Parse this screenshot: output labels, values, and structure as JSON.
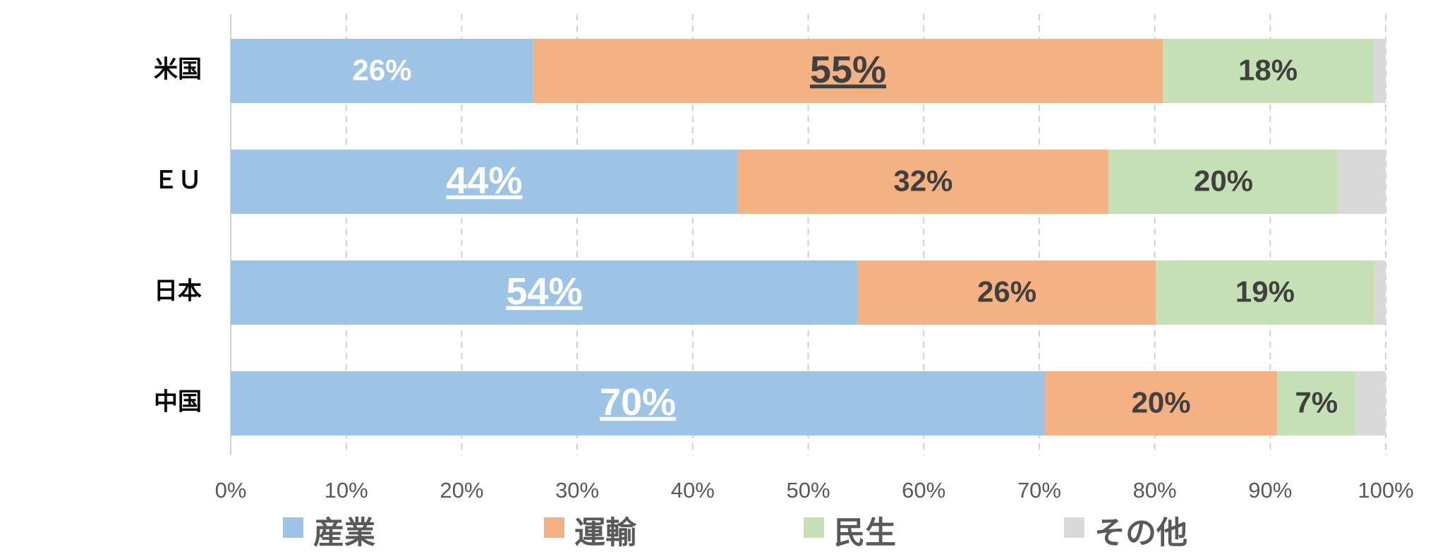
{
  "chart_data": {
    "type": "stacked-bar-horizontal",
    "categories": [
      "米国",
      "ＥＵ",
      "日本",
      "中国"
    ],
    "series": [
      {
        "name": "産業",
        "color": "#9dc3e6",
        "values": [
          26.2,
          43.9,
          54.3,
          70.5
        ],
        "value_labels": [
          "26%",
          "44%",
          "54%",
          "70%"
        ]
      },
      {
        "name": "運輸",
        "color": "#f4b183",
        "values": [
          54.5,
          32.1,
          25.8,
          20.1
        ],
        "value_labels": [
          "55%",
          "32%",
          "26%",
          "20%"
        ]
      },
      {
        "name": "民生",
        "color": "#c5e0b4",
        "values": [
          18.2,
          19.9,
          18.9,
          6.8
        ],
        "value_labels": [
          "18%",
          "20%",
          "19%",
          "7%"
        ]
      },
      {
        "name": "その他",
        "color": "#d9d9d9",
        "values": [
          1.1,
          4.1,
          1.0,
          2.6
        ]
      }
    ],
    "xlim": [
      0,
      100
    ],
    "xticks": [
      {
        "value": 0,
        "label": "0%"
      },
      {
        "value": 10,
        "label": "10%"
      },
      {
        "value": 20,
        "label": "20%"
      },
      {
        "value": 30,
        "label": "30%"
      },
      {
        "value": 40,
        "label": "40%"
      },
      {
        "value": 50,
        "label": "50%"
      },
      {
        "value": 60,
        "label": "60%"
      },
      {
        "value": 70,
        "label": "70%"
      },
      {
        "value": 80,
        "label": "80%"
      },
      {
        "value": 90,
        "label": "90%"
      },
      {
        "value": 100,
        "label": "100%"
      }
    ],
    "grid": true,
    "legend": "bottom"
  }
}
